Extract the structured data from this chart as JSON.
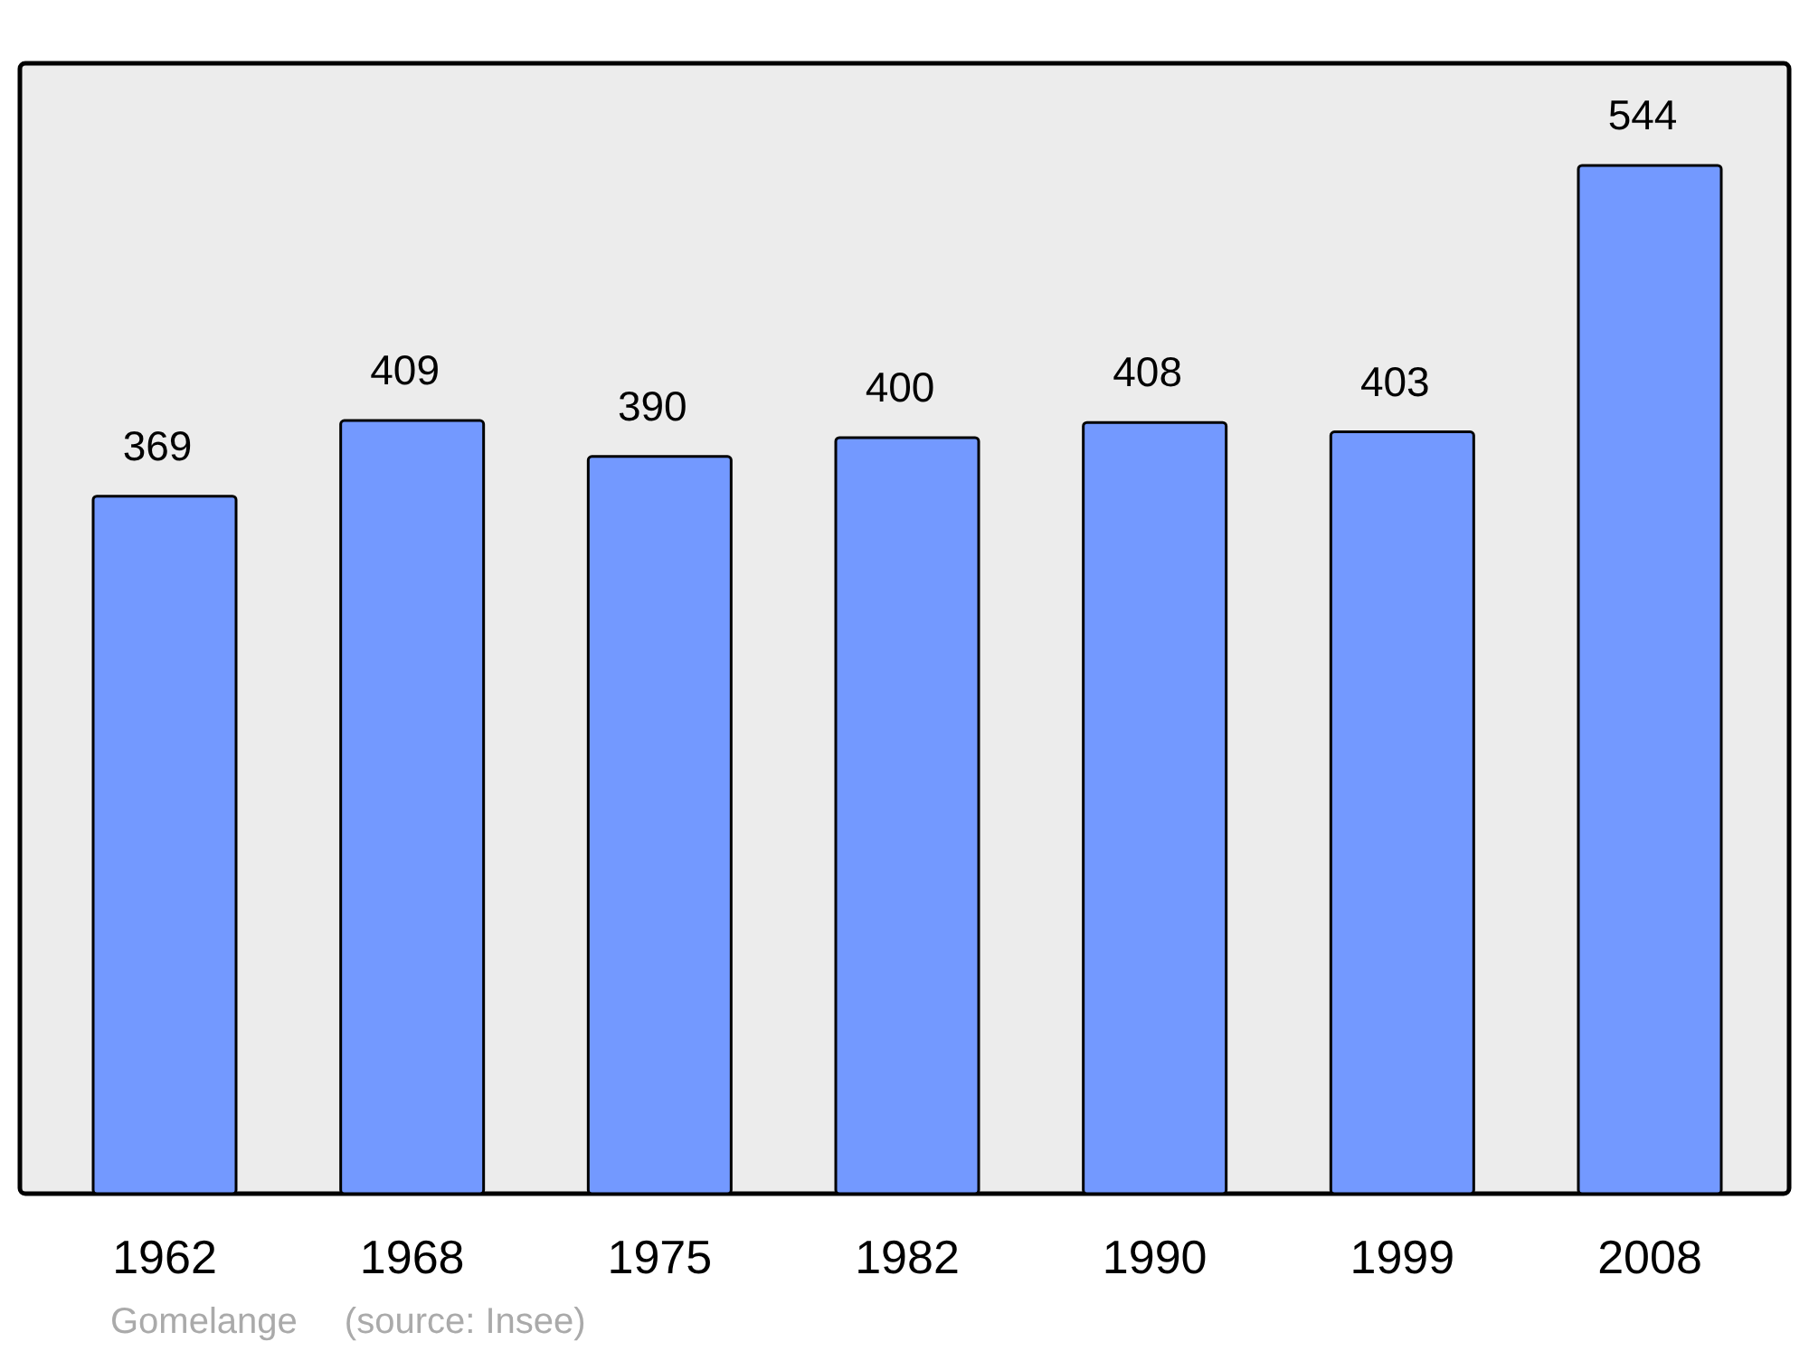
{
  "chart_data": {
    "type": "bar",
    "categories": [
      "1962",
      "1968",
      "1975",
      "1982",
      "1990",
      "1999",
      "2008"
    ],
    "values": [
      369,
      409,
      390,
      400,
      408,
      403,
      544
    ],
    "color": "#7399ff",
    "ylim": [
      0,
      598
    ],
    "data_labels": true,
    "annotations": [
      "Gomelange",
      "(source: Insee)"
    ]
  }
}
